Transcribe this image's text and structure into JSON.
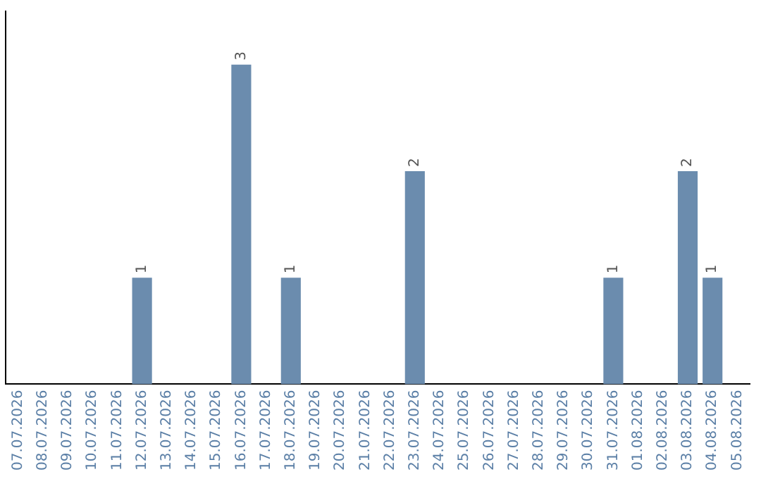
{
  "chart_data": {
    "type": "bar",
    "categories": [
      "07.07.2026",
      "08.07.2026",
      "09.07.2026",
      "10.07.2026",
      "11.07.2026",
      "12.07.2026",
      "13.07.2026",
      "14.07.2026",
      "15.07.2026",
      "16.07.2026",
      "17.07.2026",
      "18.07.2026",
      "19.07.2026",
      "20.07.2026",
      "21.07.2026",
      "22.07.2026",
      "23.07.2026",
      "24.07.2026",
      "25.07.2026",
      "26.07.2026",
      "27.07.2026",
      "28.07.2026",
      "29.07.2026",
      "30.07.2026",
      "31.07.2026",
      "01.08.2026",
      "02.08.2026",
      "03.08.2026",
      "04.08.2026",
      "05.08.2026"
    ],
    "values": [
      0,
      0,
      0,
      0,
      0,
      1,
      0,
      0,
      0,
      3,
      0,
      1,
      0,
      0,
      0,
      0,
      2,
      0,
      0,
      0,
      0,
      0,
      0,
      0,
      1,
      0,
      0,
      2,
      1,
      0
    ],
    "color": "#6b8cae",
    "value_labels": [
      null,
      null,
      null,
      null,
      null,
      "1",
      null,
      null,
      null,
      "3",
      null,
      "1",
      null,
      null,
      null,
      null,
      "2",
      null,
      null,
      null,
      null,
      null,
      null,
      null,
      "1",
      null,
      null,
      "2",
      "1",
      null
    ],
    "grid": false,
    "legend": false,
    "tick_labels": "x"
  }
}
